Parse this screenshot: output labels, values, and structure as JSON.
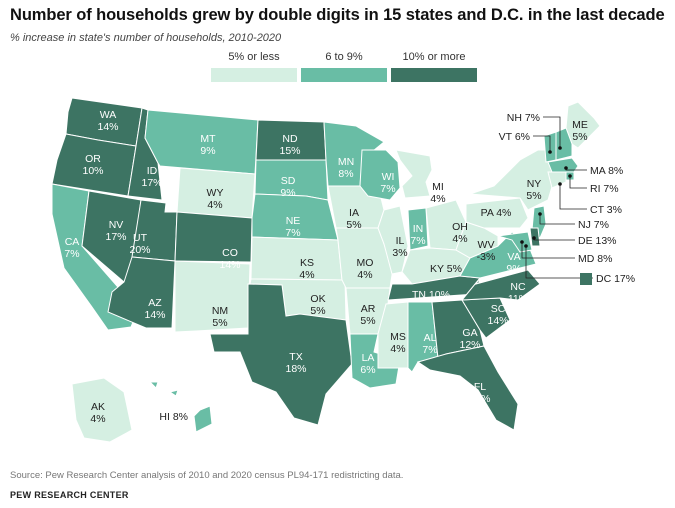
{
  "title": "Number of households grew by double digits in 15 states and D.C. in the last decade",
  "subtitle": "% increase in state's number of households, 2010-2020",
  "legend": [
    {
      "label": "5% or less",
      "bin": "low",
      "color": "#d5efe2"
    },
    {
      "label": "6 to 9%",
      "bin": "mid",
      "color": "#69bda5"
    },
    {
      "label": "10% or more",
      "bin": "high",
      "color": "#3d7463"
    }
  ],
  "colors": {
    "low": "#d5efe2",
    "mid": "#69bda5",
    "high": "#3d7463",
    "border": "#ffffff"
  },
  "states": [
    {
      "abbr": "WA",
      "value": "14%",
      "bin": "high"
    },
    {
      "abbr": "OR",
      "value": "10%",
      "bin": "high"
    },
    {
      "abbr": "CA",
      "value": "7%",
      "bin": "mid"
    },
    {
      "abbr": "ID",
      "value": "17%",
      "bin": "high"
    },
    {
      "abbr": "NV",
      "value": "17%",
      "bin": "high"
    },
    {
      "abbr": "MT",
      "value": "9%",
      "bin": "mid"
    },
    {
      "abbr": "WY",
      "value": "4%",
      "bin": "low"
    },
    {
      "abbr": "UT",
      "value": "20%",
      "bin": "high"
    },
    {
      "abbr": "AZ",
      "value": "14%",
      "bin": "high"
    },
    {
      "abbr": "CO",
      "value": "14%",
      "bin": "high"
    },
    {
      "abbr": "NM",
      "value": "5%",
      "bin": "low"
    },
    {
      "abbr": "ND",
      "value": "15%",
      "bin": "high"
    },
    {
      "abbr": "SD",
      "value": "9%",
      "bin": "mid"
    },
    {
      "abbr": "NE",
      "value": "7%",
      "bin": "mid"
    },
    {
      "abbr": "KS",
      "value": "4%",
      "bin": "low"
    },
    {
      "abbr": "OK",
      "value": "5%",
      "bin": "low"
    },
    {
      "abbr": "TX",
      "value": "18%",
      "bin": "high"
    },
    {
      "abbr": "MN",
      "value": "8%",
      "bin": "mid"
    },
    {
      "abbr": "IA",
      "value": "5%",
      "bin": "low"
    },
    {
      "abbr": "MO",
      "value": "4%",
      "bin": "low"
    },
    {
      "abbr": "AR",
      "value": "5%",
      "bin": "low"
    },
    {
      "abbr": "LA",
      "value": "6%",
      "bin": "mid"
    },
    {
      "abbr": "WI",
      "value": "7%",
      "bin": "mid"
    },
    {
      "abbr": "IL",
      "value": "3%",
      "bin": "low"
    },
    {
      "abbr": "MI",
      "value": "4%",
      "bin": "low"
    },
    {
      "abbr": "IN",
      "value": "7%",
      "bin": "mid"
    },
    {
      "abbr": "OH",
      "value": "4%",
      "bin": "low"
    },
    {
      "abbr": "KY",
      "value": "5%",
      "bin": "low"
    },
    {
      "abbr": "TN",
      "value": "10%",
      "bin": "high"
    },
    {
      "abbr": "MS",
      "value": "4%",
      "bin": "low"
    },
    {
      "abbr": "AL",
      "value": "7%",
      "bin": "mid"
    },
    {
      "abbr": "GA",
      "value": "12%",
      "bin": "high"
    },
    {
      "abbr": "FL",
      "value": "15%",
      "bin": "high"
    },
    {
      "abbr": "SC",
      "value": "14%",
      "bin": "high"
    },
    {
      "abbr": "NC",
      "value": "11%",
      "bin": "high"
    },
    {
      "abbr": "VA",
      "value": "9%",
      "bin": "mid"
    },
    {
      "abbr": "WV",
      "value": "-3%",
      "bin": "low"
    },
    {
      "abbr": "PA",
      "value": "4%",
      "bin": "low"
    },
    {
      "abbr": "NY",
      "value": "5%",
      "bin": "low"
    },
    {
      "abbr": "ME",
      "value": "5%",
      "bin": "low"
    },
    {
      "abbr": "AK",
      "value": "4%",
      "bin": "low"
    },
    {
      "abbr": "HI",
      "value": "8%",
      "bin": "mid"
    },
    {
      "abbr": "NH",
      "value": "7%",
      "bin": "mid"
    },
    {
      "abbr": "VT",
      "value": "6%",
      "bin": "mid"
    },
    {
      "abbr": "MA",
      "value": "8%",
      "bin": "mid"
    },
    {
      "abbr": "RI",
      "value": "7%",
      "bin": "mid"
    },
    {
      "abbr": "CT",
      "value": "3%",
      "bin": "low"
    },
    {
      "abbr": "NJ",
      "value": "7%",
      "bin": "mid"
    },
    {
      "abbr": "DE",
      "value": "13%",
      "bin": "high"
    },
    {
      "abbr": "MD",
      "value": "8%",
      "bin": "mid"
    },
    {
      "abbr": "DC",
      "value": "17%",
      "bin": "high"
    }
  ],
  "source": "Source: Pew Research Center analysis of 2010 and 2020 census PL94-171 redistricting data.",
  "brand": "PEW RESEARCH CENTER"
}
